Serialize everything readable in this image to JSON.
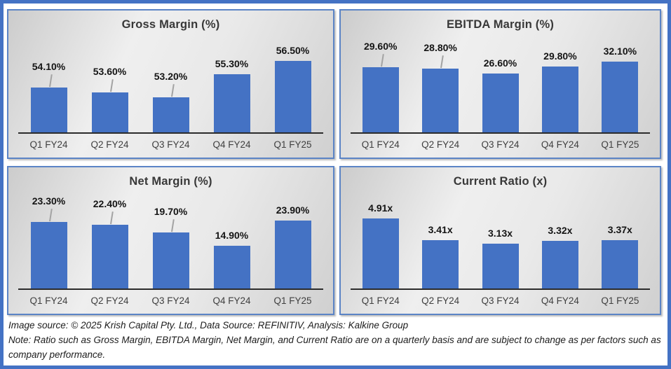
{
  "page": {
    "frame_border_color": "#4472c4",
    "panel_border_color": "#5b84c6",
    "bar_color": "#4472c4",
    "background_color": "#ffffff"
  },
  "chart_data": [
    {
      "type": "bar",
      "title": "Gross Margin (%)",
      "categories": [
        "Q1 FY24",
        "Q2 FY24",
        "Q3 FY24",
        "Q4 FY24",
        "Q1 FY25"
      ],
      "values": [
        54.1,
        53.6,
        53.2,
        55.3,
        56.5
      ],
      "labels": [
        "54.10%",
        "53.60%",
        "53.20%",
        "55.30%",
        "56.50%"
      ],
      "leader_lines": [
        true,
        true,
        true,
        false,
        false
      ],
      "ylim": [
        50,
        57
      ],
      "xlabel": "",
      "ylabel": "",
      "grid": false,
      "legend": null,
      "bar_color": "#4472c4"
    },
    {
      "type": "bar",
      "title": "EBITDA Margin (%)",
      "categories": [
        "Q1 FY24",
        "Q2 FY24",
        "Q3 FY24",
        "Q4 FY24",
        "Q1 FY25"
      ],
      "values": [
        29.6,
        28.8,
        26.6,
        29.8,
        32.1
      ],
      "labels": [
        "29.60%",
        "28.80%",
        "26.60%",
        "29.80%",
        "32.10%"
      ],
      "leader_lines": [
        true,
        true,
        false,
        false,
        false
      ],
      "ylim": [
        0,
        35
      ],
      "xlabel": "",
      "ylabel": "",
      "grid": false,
      "legend": null,
      "bar_color": "#4472c4"
    },
    {
      "type": "bar",
      "title": "Net Margin (%)",
      "categories": [
        "Q1 FY24",
        "Q2 FY24",
        "Q3 FY24",
        "Q4 FY24",
        "Q1 FY25"
      ],
      "values": [
        23.3,
        22.4,
        19.7,
        14.9,
        23.9
      ],
      "labels": [
        "23.30%",
        "22.40%",
        "19.70%",
        "14.90%",
        "23.90%"
      ],
      "leader_lines": [
        true,
        true,
        true,
        false,
        false
      ],
      "ylim": [
        0,
        27
      ],
      "xlabel": "",
      "ylabel": "",
      "grid": false,
      "legend": null,
      "bar_color": "#4472c4"
    },
    {
      "type": "bar",
      "title": "Current Ratio (x)",
      "categories": [
        "Q1 FY24",
        "Q2 FY24",
        "Q3 FY24",
        "Q4 FY24",
        "Q1 FY25"
      ],
      "values": [
        4.91,
        3.41,
        3.13,
        3.32,
        3.37
      ],
      "labels": [
        "4.91x",
        "3.41x",
        "3.13x",
        "3.32x",
        "3.37x"
      ],
      "leader_lines": [
        false,
        false,
        false,
        false,
        false
      ],
      "ylim": [
        0,
        5.4
      ],
      "xlabel": "",
      "ylabel": "",
      "grid": false,
      "legend": null,
      "bar_color": "#4472c4"
    }
  ],
  "footer": {
    "line1": "Image source: © 2025 Krish Capital Pty. Ltd., Data Source: REFINITIV, Analysis: Kalkine Group",
    "line2": "Note: Ratio such as Gross Margin, EBITDA Margin, Net Margin, and Current Ratio are on a quarterly basis and are subject to change as per factors such as company performance."
  }
}
